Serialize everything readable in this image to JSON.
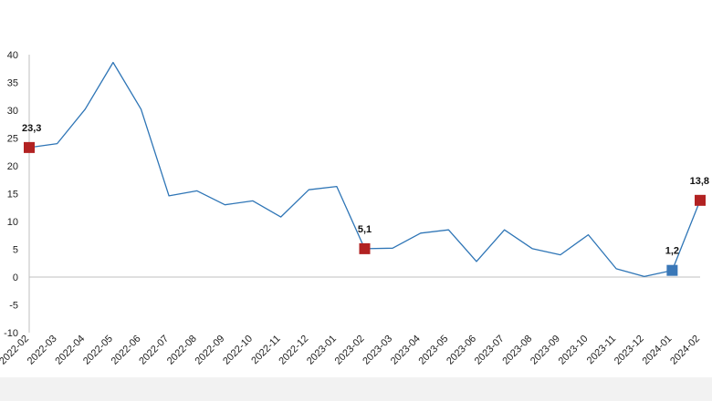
{
  "chart_data": {
    "type": "line",
    "title": "",
    "xlabel": "",
    "ylabel": "",
    "ylim": [
      -10,
      40
    ],
    "yticks": [
      "40",
      "35",
      "30",
      "25",
      "20",
      "15",
      "10",
      "5",
      "0",
      "-5",
      "-10"
    ],
    "ytick_values": [
      40,
      35,
      30,
      25,
      20,
      15,
      10,
      5,
      0,
      -5,
      -10
    ],
    "grid": false,
    "categories": [
      "2022-02",
      "2022-03",
      "2022-04",
      "2022-05",
      "2022-06",
      "2022-07",
      "2022-08",
      "2022-09",
      "2022-10",
      "2022-11",
      "2022-12",
      "2023-01",
      "2023-02",
      "2023-03",
      "2023-04",
      "2023-05",
      "2023-06",
      "2023-07",
      "2023-08",
      "2023-09",
      "2023-10",
      "2023-11",
      "2023-12",
      "2024-01",
      "2024-02"
    ],
    "series": [
      {
        "color": "#2e75b6",
        "values": [
          23.3,
          24.0,
          30.2,
          38.6,
          30.2,
          14.6,
          15.5,
          13.0,
          13.7,
          10.8,
          15.7,
          16.3,
          5.1,
          5.2,
          7.9,
          8.5,
          2.8,
          8.5,
          5.1,
          4.0,
          7.6,
          1.5,
          0.1,
          1.2,
          13.8
        ]
      }
    ],
    "highlights": [
      {
        "index": 0,
        "label": "23,3",
        "color": "#b22222"
      },
      {
        "index": 12,
        "label": "5,1",
        "color": "#b22222"
      },
      {
        "index": 23,
        "label": "1,2",
        "color": "#3a78b8"
      },
      {
        "index": 24,
        "label": "13,8",
        "color": "#b22222"
      }
    ]
  }
}
